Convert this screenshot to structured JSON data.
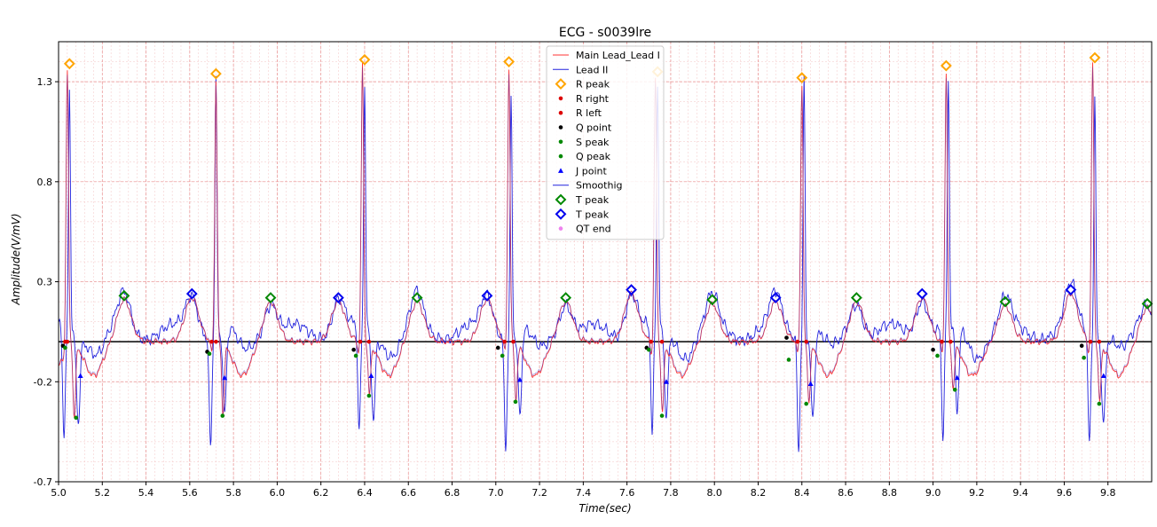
{
  "chart_data": {
    "type": "line",
    "title": "ECG - s0039lre",
    "xlabel": "Time(sec)",
    "ylabel": "Amplitude(V/mV)",
    "xlim": [
      5.0,
      10.0
    ],
    "ylim": [
      -0.7,
      1.5
    ],
    "x_ticks": [
      "5.0",
      "5.2",
      "5.4",
      "5.6",
      "5.8",
      "6.0",
      "6.2",
      "6.4",
      "6.6",
      "6.8",
      "7.0",
      "7.2",
      "7.4",
      "7.6",
      "7.8",
      "8.0",
      "8.2",
      "8.4",
      "8.6",
      "8.8",
      "9.0",
      "9.2",
      "9.4",
      "9.6",
      "9.8"
    ],
    "y_ticks": [
      "-0.7",
      "-0.2",
      "0.3",
      "0.8",
      "1.3"
    ],
    "grid": true,
    "legend_position": "top-center",
    "baseline": 0.0,
    "beats": {
      "lead1_r_times": [
        5.04,
        5.72,
        6.39,
        7.06,
        7.73,
        8.4,
        9.06,
        9.73
      ],
      "lead2_r_times": [
        5.05,
        5.72,
        6.4,
        7.07,
        7.74,
        8.41,
        9.07,
        9.74
      ]
    },
    "series": [
      {
        "name": "Main Lead_Lead I",
        "color": "#ff3333",
        "kind": "line"
      },
      {
        "name": "Lead II",
        "color": "#2222dd",
        "kind": "line"
      },
      {
        "name": "R peak",
        "color": "#ffa500",
        "kind": "diamond",
        "points": [
          [
            5.05,
            1.39
          ],
          [
            5.72,
            1.34
          ],
          [
            6.4,
            1.41
          ],
          [
            7.06,
            1.4
          ],
          [
            7.74,
            1.35
          ],
          [
            8.4,
            1.32
          ],
          [
            9.06,
            1.38
          ],
          [
            9.74,
            1.42
          ]
        ]
      },
      {
        "name": "R right",
        "color": "#dd0000",
        "kind": "dot",
        "points": [
          [
            5.04,
            0.0
          ],
          [
            5.72,
            0.0
          ],
          [
            6.42,
            0.0
          ],
          [
            7.08,
            0.0
          ],
          [
            7.76,
            0.0
          ],
          [
            8.42,
            0.0
          ],
          [
            9.08,
            0.0
          ],
          [
            9.76,
            0.0
          ]
        ]
      },
      {
        "name": "R left",
        "color": "#dd0000",
        "kind": "dot",
        "points": [
          [
            5.03,
            0.0
          ],
          [
            5.7,
            0.0
          ],
          [
            6.38,
            0.0
          ],
          [
            7.04,
            0.0
          ],
          [
            7.71,
            0.0
          ],
          [
            8.38,
            0.0
          ],
          [
            9.04,
            0.0
          ],
          [
            9.72,
            0.0
          ]
        ]
      },
      {
        "name": "Q point",
        "color": "#000000",
        "kind": "dot",
        "points": [
          [
            5.02,
            -0.02
          ],
          [
            5.68,
            -0.05
          ],
          [
            6.35,
            -0.04
          ],
          [
            7.01,
            -0.03
          ],
          [
            7.69,
            -0.03
          ],
          [
            8.33,
            0.02
          ],
          [
            9.0,
            -0.04
          ],
          [
            9.68,
            -0.02
          ]
        ]
      },
      {
        "name": "S peak",
        "color": "#008800",
        "kind": "dot",
        "points": [
          [
            5.08,
            -0.38
          ],
          [
            5.75,
            -0.37
          ],
          [
            6.42,
            -0.27
          ],
          [
            7.09,
            -0.3
          ],
          [
            7.76,
            -0.37
          ],
          [
            8.42,
            -0.31
          ],
          [
            9.1,
            -0.24
          ],
          [
            9.76,
            -0.31
          ]
        ]
      },
      {
        "name": "Q peak",
        "color": "#008800",
        "kind": "dot",
        "points": [
          [
            5.03,
            -0.03
          ],
          [
            5.69,
            -0.06
          ],
          [
            6.36,
            -0.07
          ],
          [
            7.03,
            -0.07
          ],
          [
            7.7,
            -0.04
          ],
          [
            8.34,
            -0.09
          ],
          [
            9.02,
            -0.07
          ],
          [
            9.69,
            -0.08
          ]
        ]
      },
      {
        "name": "J point",
        "color": "#0000ff",
        "kind": "triangle",
        "points": [
          [
            5.1,
            -0.17
          ],
          [
            5.76,
            -0.18
          ],
          [
            6.43,
            -0.17
          ],
          [
            7.11,
            -0.19
          ],
          [
            7.78,
            -0.2
          ],
          [
            8.44,
            -0.21
          ],
          [
            9.11,
            -0.18
          ],
          [
            9.78,
            -0.17
          ]
        ]
      },
      {
        "name": "Smoothig",
        "color": "#2222dd",
        "kind": "line"
      },
      {
        "name": "T peak",
        "color": "#008800",
        "kind": "open-diamond",
        "points": [
          [
            5.3,
            0.23
          ],
          [
            5.97,
            0.22
          ],
          [
            6.64,
            0.22
          ],
          [
            7.32,
            0.22
          ],
          [
            7.99,
            0.21
          ],
          [
            8.65,
            0.22
          ],
          [
            9.33,
            0.2
          ],
          [
            9.98,
            0.19
          ]
        ]
      },
      {
        "name": "T peak",
        "color": "#0000ee",
        "kind": "open-diamond",
        "points": [
          [
            5.61,
            0.24
          ],
          [
            6.28,
            0.22
          ],
          [
            6.96,
            0.23
          ],
          [
            7.62,
            0.26
          ],
          [
            8.28,
            0.22
          ],
          [
            8.95,
            0.24
          ],
          [
            9.63,
            0.26
          ]
        ]
      },
      {
        "name": "QT end",
        "color": "#ee82ee",
        "kind": "dot",
        "points": []
      }
    ]
  }
}
